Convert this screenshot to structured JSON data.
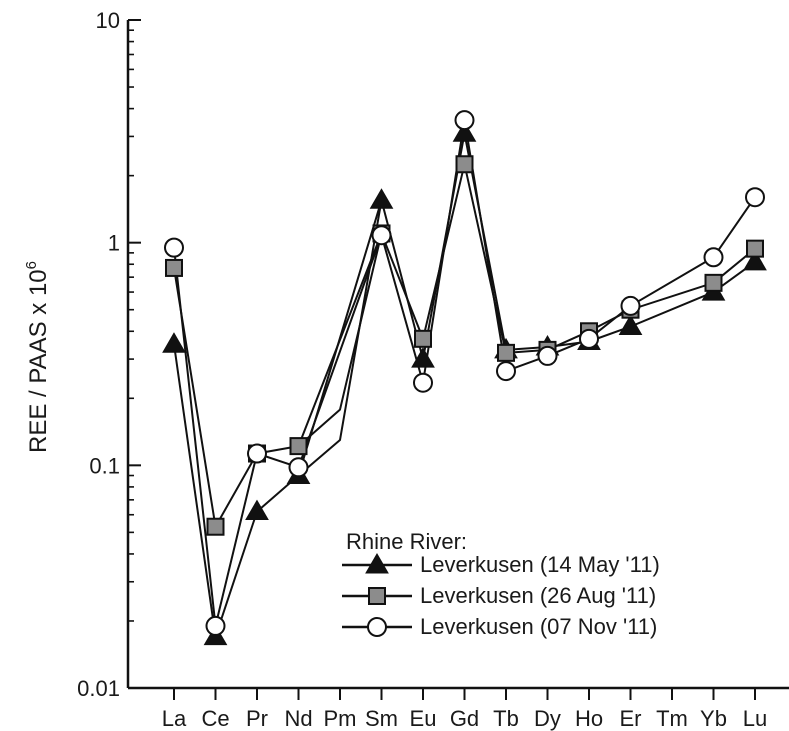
{
  "chart_data": {
    "type": "line",
    "title": "",
    "xlabel": "",
    "ylabel": "REE / PAAS x 10",
    "ylabel_superscript": "6",
    "yscale": "log",
    "ylim": [
      0.01,
      10
    ],
    "y_ticks": [
      "0.01",
      "0.1",
      "1",
      "10"
    ],
    "categories": [
      "La",
      "Ce",
      "Pr",
      "Nd",
      "Pm",
      "Sm",
      "Eu",
      "Gd",
      "Tb",
      "Dy",
      "Ho",
      "Er",
      "Tm",
      "Yb",
      "Lu"
    ],
    "legend_title": "Rhine River:",
    "legend_position": "bottom-right",
    "grid": false,
    "series": [
      {
        "name": "Leverkusen (14 May '11)",
        "marker": "triangle",
        "color": "#111111",
        "values": [
          0.35,
          0.017,
          0.062,
          0.09,
          null,
          1.55,
          0.3,
          3.1,
          0.33,
          0.34,
          0.36,
          0.42,
          null,
          0.6,
          0.82
        ]
      },
      {
        "name": "Leverkusen (26 Aug '11)",
        "marker": "square",
        "color": "#8c8c8c",
        "values": [
          0.77,
          0.053,
          0.113,
          0.122,
          null,
          1.1,
          0.37,
          2.25,
          0.32,
          0.33,
          0.4,
          0.5,
          null,
          0.66,
          0.94
        ]
      },
      {
        "name": "Leverkusen (07 Nov '11)",
        "marker": "circle",
        "color": "#ffffff",
        "values": [
          0.95,
          0.019,
          0.113,
          0.098,
          null,
          1.08,
          0.235,
          3.55,
          0.265,
          0.31,
          0.37,
          0.52,
          null,
          0.86,
          1.6
        ]
      }
    ],
    "connector_segments": [
      {
        "from_index": 3,
        "to_index": 5,
        "via_value": 0.13
      },
      {
        "from_index": 3,
        "to_index": 5,
        "via_value": 0.178
      },
      {
        "from_index": 12,
        "to_index": 13,
        "via_value": null
      }
    ]
  }
}
